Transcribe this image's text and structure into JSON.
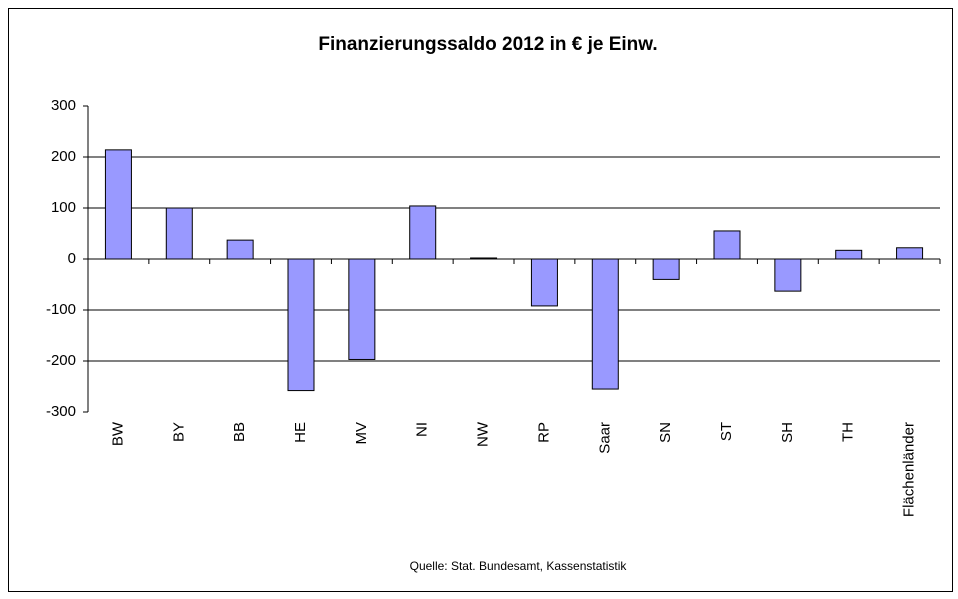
{
  "chart_data": {
    "type": "bar",
    "title": "Finanzierungssaldo 2012 in € je Einw.",
    "source": "Quelle: Stat. Bundesamt, Kassenstatistik",
    "categories": [
      "BW",
      "BY",
      "BB",
      "HE",
      "MV",
      "NI",
      "NW",
      "RP",
      "Saar",
      "SN",
      "ST",
      "SH",
      "TH",
      "Flächenländer"
    ],
    "values": [
      214,
      100,
      37,
      -258,
      -197,
      104,
      2,
      -92,
      -255,
      -40,
      55,
      -63,
      17,
      22
    ],
    "color": "#9999ff",
    "ylim": [
      -300,
      300
    ],
    "yticks": [
      -300,
      -200,
      -100,
      0,
      100,
      200,
      300
    ],
    "grid": true
  }
}
